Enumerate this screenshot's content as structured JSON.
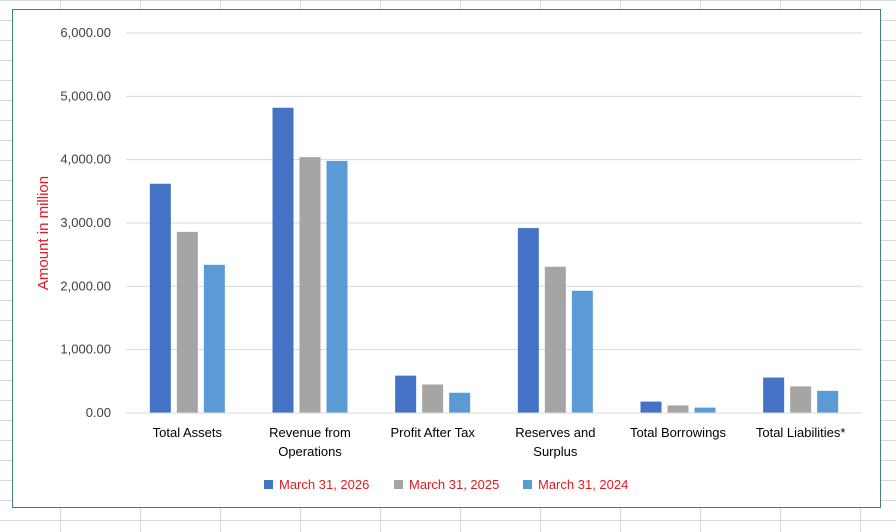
{
  "chart_data": {
    "type": "bar",
    "title": "",
    "xlabel": "",
    "ylabel": "Amount in million",
    "ylim": [
      0,
      6000
    ],
    "yticks": [
      "0.00",
      "1,000.00",
      "2,000.00",
      "3,000.00",
      "4,000.00",
      "5,000.00",
      "6,000.00"
    ],
    "ytick_values": [
      0,
      1000,
      2000,
      3000,
      4000,
      5000,
      6000
    ],
    "grid": true,
    "legend_position": "bottom",
    "categories": [
      "Total Assets",
      "Revenue from Operations",
      "Profit After Tax",
      "Reserves and Surplus",
      "Total Borrowings",
      "Total Liabilities*"
    ],
    "category_lines": [
      [
        "Total Assets"
      ],
      [
        "Revenue from",
        "Operations"
      ],
      [
        "Profit After Tax"
      ],
      [
        "Reserves and",
        "Surplus"
      ],
      [
        "Total Borrowings"
      ],
      [
        "Total Liabilities*"
      ]
    ],
    "series": [
      {
        "name": "March 31, 2026",
        "color": "#4472c4",
        "values": [
          3620,
          4820,
          590,
          2920,
          180,
          560
        ]
      },
      {
        "name": "March 31, 2025",
        "color": "#a5a5a5",
        "values": [
          2860,
          4040,
          450,
          2310,
          120,
          420
        ]
      },
      {
        "name": "March 31, 2024",
        "color": "#5b9bd5",
        "values": [
          2340,
          3980,
          320,
          1930,
          85,
          350
        ]
      }
    ]
  }
}
